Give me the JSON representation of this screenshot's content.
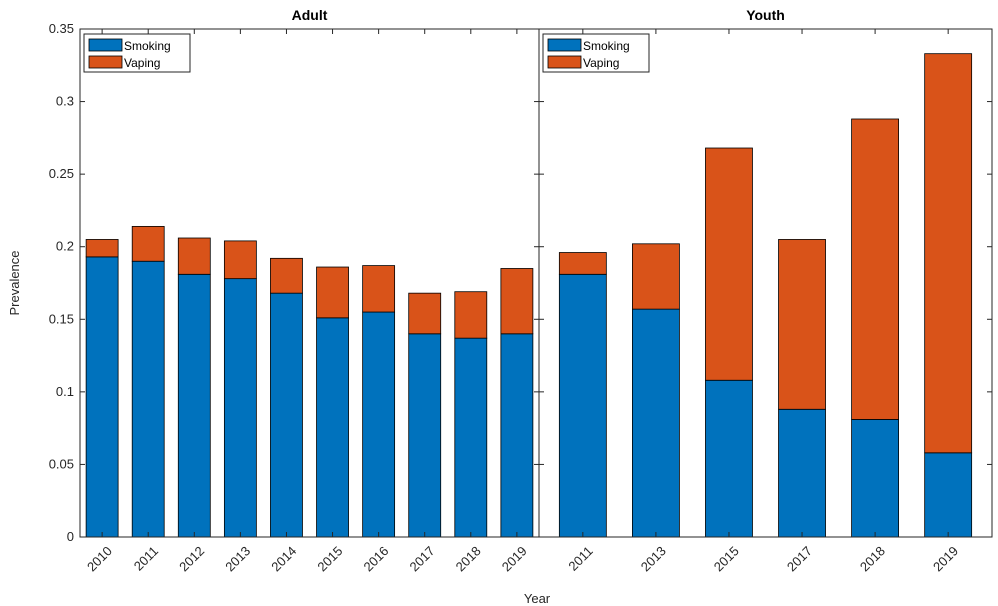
{
  "chart_data": {
    "type": "bar",
    "stacked": true,
    "xlabel": "Year",
    "ylabel": "Prevalence",
    "ylim": [
      0,
      0.35
    ],
    "yticks": [
      0,
      0.05,
      0.1,
      0.15,
      0.2,
      0.25,
      0.3,
      0.35
    ],
    "ytick_labels": [
      "0",
      "0.05",
      "0.1",
      "0.15",
      "0.2",
      "0.25",
      "0.3",
      "0.35"
    ],
    "legend_position": "top-left",
    "colors": {
      "Smoking": "#0072BD",
      "Vaping": "#D95319"
    },
    "panels": [
      {
        "title": "Adult",
        "categories": [
          "2010",
          "2011",
          "2012",
          "2013",
          "2014",
          "2015",
          "2016",
          "2017",
          "2018",
          "2019"
        ],
        "series": [
          {
            "name": "Smoking",
            "values": [
              0.193,
              0.19,
              0.181,
              0.178,
              0.168,
              0.151,
              0.155,
              0.14,
              0.137,
              0.14
            ]
          },
          {
            "name": "Vaping",
            "values": [
              0.012,
              0.024,
              0.025,
              0.026,
              0.024,
              0.035,
              0.032,
              0.028,
              0.032,
              0.045
            ]
          }
        ]
      },
      {
        "title": "Youth",
        "categories": [
          "2011",
          "2013",
          "2015",
          "2017",
          "2018",
          "2019"
        ],
        "series": [
          {
            "name": "Smoking",
            "values": [
              0.181,
              0.157,
              0.108,
              0.088,
              0.081,
              0.058
            ]
          },
          {
            "name": "Vaping",
            "values": [
              0.015,
              0.045,
              0.16,
              0.117,
              0.207,
              0.275
            ]
          }
        ]
      }
    ]
  }
}
